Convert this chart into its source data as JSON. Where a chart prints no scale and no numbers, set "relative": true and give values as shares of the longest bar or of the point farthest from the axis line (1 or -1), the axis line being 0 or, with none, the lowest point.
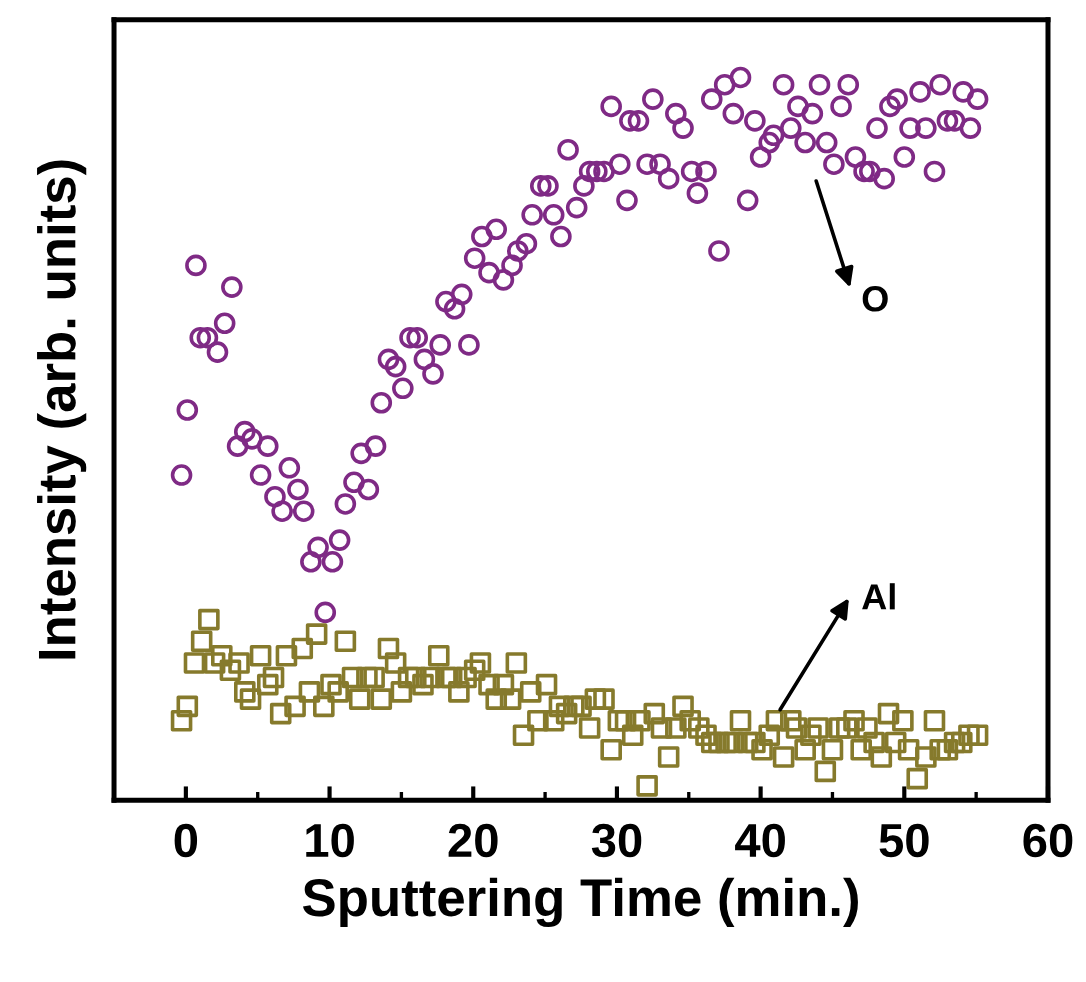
{
  "chart_data": {
    "type": "scatter",
    "relative": true,
    "xlabel": "Sputtering Time (min.)",
    "ylabel": "Intensity (arb. units)",
    "xlim": [
      -5,
      60
    ],
    "xticks": [
      0,
      10,
      20,
      30,
      40,
      50,
      60
    ],
    "grid": false,
    "legend": false,
    "series": [
      {
        "name": "O",
        "color": "#7f2a85",
        "marker": "circle",
        "x": [
          -0.3,
          0.1,
          0.7,
          1.0,
          1.5,
          2.2,
          2.7,
          3.2,
          3.6,
          4.1,
          4.6,
          5.2,
          5.7,
          6.2,
          6.7,
          7.2,
          7.8,
          8.2,
          8.7,
          9.2,
          9.7,
          10.2,
          10.7,
          11.1,
          11.7,
          12.2,
          12.7,
          13.2,
          13.6,
          14.1,
          14.6,
          15.1,
          15.6,
          16.1,
          16.6,
          17.2,
          17.7,
          18.1,
          18.7,
          19.2,
          19.7,
          20.1,
          20.6,
          21.1,
          21.6,
          22.1,
          22.7,
          23.1,
          23.7,
          24.1,
          24.7,
          25.2,
          25.6,
          26.1,
          26.6,
          27.2,
          27.7,
          28.1,
          28.6,
          29.1,
          29.6,
          30.2,
          30.7,
          30.9,
          31.5,
          32.1,
          32.5,
          33.0,
          33.6,
          34.1,
          34.6,
          35.2,
          35.6,
          36.2,
          36.6,
          37.1,
          37.5,
          38.1,
          38.6,
          39.1,
          39.6,
          40.0,
          40.6,
          40.9,
          41.6,
          42.1,
          42.6,
          43.1,
          43.6,
          44.1,
          44.6,
          45.1,
          45.6,
          46.1,
          46.6,
          47.2,
          47.6,
          48.1,
          48.6,
          49.0,
          49.5,
          50.0,
          50.4,
          51.1,
          51.5,
          52.1,
          52.5,
          53.0,
          53.5,
          54.1,
          54.6,
          55.1
        ],
        "values": [
          0.45,
          0.54,
          0.74,
          0.64,
          0.64,
          0.62,
          0.66,
          0.71,
          0.49,
          0.51,
          0.5,
          0.45,
          0.49,
          0.42,
          0.4,
          0.46,
          0.43,
          0.4,
          0.33,
          0.35,
          0.26,
          0.33,
          0.36,
          0.41,
          0.44,
          0.48,
          0.43,
          0.49,
          0.55,
          0.61,
          0.6,
          0.57,
          0.64,
          0.64,
          0.61,
          0.59,
          0.63,
          0.69,
          0.68,
          0.7,
          0.63,
          0.75,
          0.78,
          0.73,
          0.79,
          0.72,
          0.74,
          0.76,
          0.77,
          0.81,
          0.85,
          0.85,
          0.81,
          0.78,
          0.9,
          0.82,
          0.85,
          0.87,
          0.87,
          0.87,
          0.96,
          0.88,
          0.83,
          0.94,
          0.94,
          0.88,
          0.97,
          0.88,
          0.86,
          0.95,
          0.93,
          0.87,
          0.84,
          0.87,
          0.97,
          0.76,
          0.99,
          0.95,
          1,
          0.83,
          0.94,
          0.89,
          0.91,
          0.92,
          0.99,
          0.93,
          0.96,
          0.91,
          0.95,
          0.99,
          0.91,
          0.88,
          0.96,
          0.99,
          0.89,
          0.87,
          0.87,
          0.93,
          0.86,
          0.96,
          0.97,
          0.89,
          0.93,
          0.98,
          0.93,
          0.87,
          0.99,
          0.94,
          0.94,
          0.98,
          0.93,
          0.97
        ]
      },
      {
        "name": "Al",
        "color": "#867a2c",
        "marker": "square",
        "x": [
          -0.3,
          0.1,
          0.6,
          1.1,
          1.6,
          2.0,
          2.5,
          3.1,
          3.7,
          4.1,
          4.5,
          5.2,
          5.7,
          6.1,
          6.6,
          7.0,
          7.6,
          8.1,
          8.6,
          9.1,
          9.6,
          10.1,
          10.6,
          11.1,
          11.6,
          12.1,
          12.6,
          13.1,
          13.6,
          14.1,
          14.6,
          15.0,
          15.5,
          16.0,
          16.5,
          17.0,
          17.6,
          18.1,
          18.5,
          19.0,
          19.5,
          20.1,
          20.5,
          21.1,
          21.6,
          22.1,
          22.6,
          23.0,
          23.5,
          24.0,
          24.5,
          25.1,
          25.6,
          26.0,
          26.5,
          27.0,
          27.5,
          28.1,
          28.5,
          29.1,
          29.6,
          30.1,
          30.6,
          31.1,
          31.6,
          32.1,
          32.6,
          33.1,
          33.6,
          34.1,
          34.6,
          35.1,
          35.7,
          36.2,
          36.6,
          37.1,
          37.6,
          38.1,
          38.6,
          39.1,
          39.6,
          40.1,
          40.6,
          41.1,
          41.6,
          42.1,
          42.5,
          43.1,
          43.5,
          44.0,
          44.5,
          45.0,
          45.5,
          46.0,
          46.5,
          47.0,
          47.4,
          47.9,
          48.4,
          48.9,
          49.4,
          49.9,
          50.3,
          50.9,
          51.5,
          52.1,
          52.5,
          53.0,
          53.5,
          54.0,
          54.5,
          55.1
        ],
        "values": [
          0.11,
          0.13,
          0.19,
          0.22,
          0.25,
          0.19,
          0.2,
          0.18,
          0.19,
          0.15,
          0.14,
          0.2,
          0.16,
          0.17,
          0.12,
          0.2,
          0.13,
          0.21,
          0.15,
          0.23,
          0.13,
          0.16,
          0.15,
          0.22,
          0.17,
          0.14,
          0.17,
          0.17,
          0.14,
          0.21,
          0.19,
          0.15,
          0.17,
          0.17,
          0.16,
          0.17,
          0.2,
          0.17,
          0.17,
          0.15,
          0.17,
          0.18,
          0.19,
          0.16,
          0.14,
          0.16,
          0.14,
          0.19,
          0.09,
          0.15,
          0.11,
          0.16,
          0.11,
          0.13,
          0.12,
          0.13,
          0.13,
          0.1,
          0.14,
          0.14,
          0.07,
          0.11,
          0.11,
          0.09,
          0.11,
          0.02,
          0.12,
          0.1,
          0.06,
          0.1,
          0.13,
          0.11,
          0.1,
          0.09,
          0.08,
          0.08,
          0.08,
          0.08,
          0.11,
          0.08,
          0.08,
          0.07,
          0.09,
          0.11,
          0.06,
          0.11,
          0.1,
          0.07,
          0.09,
          0.1,
          0.04,
          0.07,
          0.1,
          0.1,
          0.11,
          0.07,
          0.1,
          0.08,
          0.06,
          0.12,
          0.08,
          0.11,
          0.07,
          0.03,
          0.06,
          0.11,
          0.07,
          0.07,
          0.08,
          0.08,
          0.09,
          0.09
        ]
      }
    ]
  }
}
